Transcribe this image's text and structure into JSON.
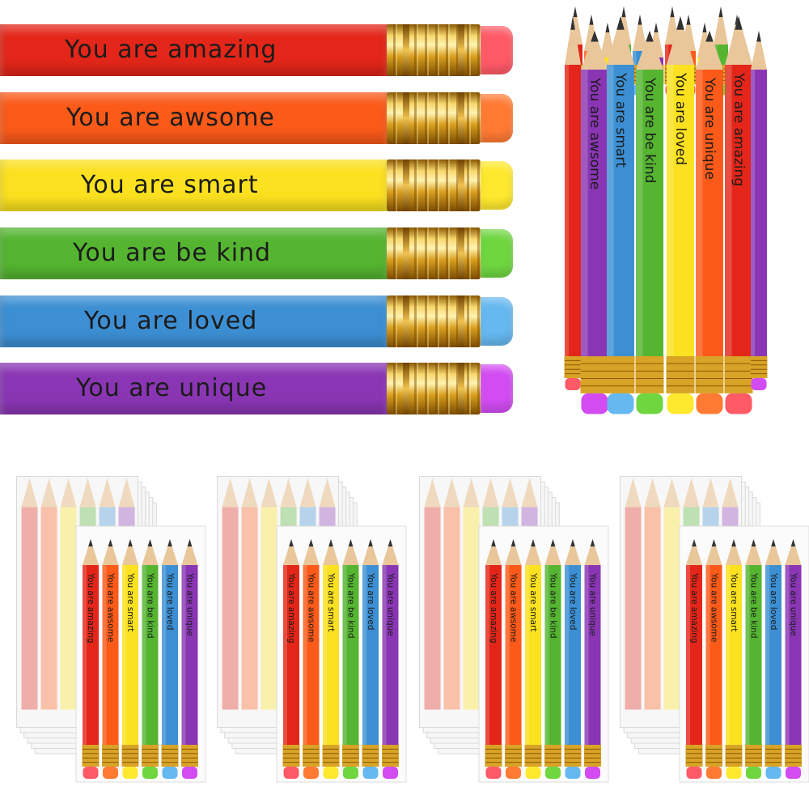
{
  "pencils": [
    {
      "label": "You are amazing",
      "body_color": "#e32619",
      "eraser_color": "#ff5a66"
    },
    {
      "label": "You are awsome",
      "body_color": "#fb5a19",
      "eraser_color": "#ff7a33"
    },
    {
      "label": "You are smart",
      "body_color": "#fbe11f",
      "eraser_color": "#ffe92e"
    },
    {
      "label": "You are be kind",
      "body_color": "#55b531",
      "eraser_color": "#6fd640"
    },
    {
      "label": "You are loved",
      "body_color": "#3c8fd3",
      "eraser_color": "#66b8f0"
    },
    {
      "label": "You are unique",
      "body_color": "#8a36b4",
      "eraser_color": "#d24cf2"
    }
  ],
  "bundle": {
    "labels": [
      "You are amazing",
      "You are awsome",
      "You are smart",
      "You are be kind",
      "You are loved",
      "You are unique",
      "You are amazing"
    ]
  },
  "pack_count": 4
}
